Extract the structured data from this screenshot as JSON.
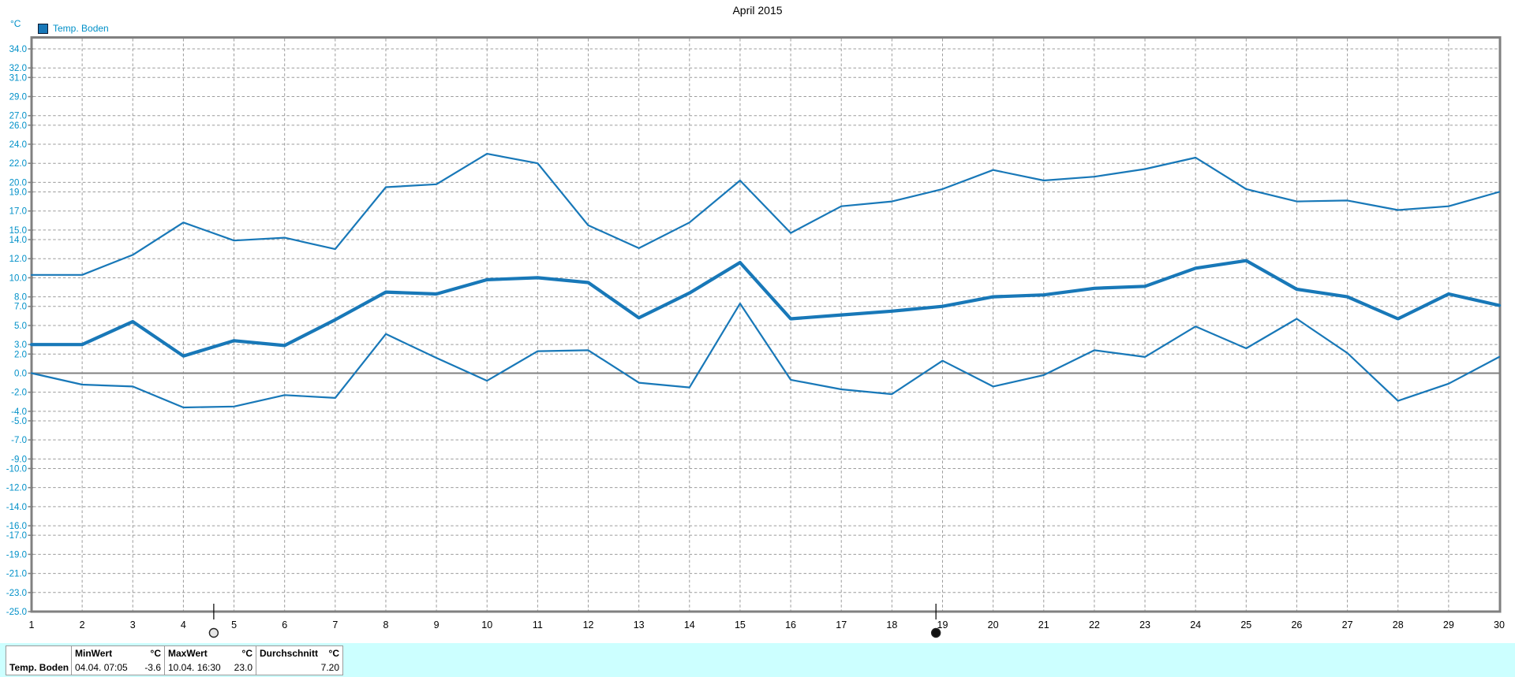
{
  "title": "April 2015",
  "y_axis_unit": "°C",
  "legend": {
    "label": "Temp. Boden",
    "swatch_color": "#1878b8"
  },
  "colors": {
    "line": "#1878b8",
    "axis": "#808080",
    "grid": "#9c9c9c",
    "axis_label": "#0090c8",
    "day_label": "#000000",
    "table_bg": "#ccffff"
  },
  "axis": {
    "y_ticks": [
      34,
      32,
      31,
      29,
      27,
      26,
      24,
      22,
      20,
      19,
      17,
      15,
      14,
      12,
      10,
      8,
      7,
      5,
      3,
      2,
      0,
      -2,
      -4,
      -5,
      -7,
      -9,
      -10,
      -12,
      -14,
      -16,
      -17,
      -19,
      -21,
      -23,
      -25
    ],
    "y_tick_decimals": 1
  },
  "moon_markers": [
    {
      "name": "full-moon",
      "day": 4.6
    },
    {
      "name": "new-moon",
      "day": 18.87
    }
  ],
  "chart_data": {
    "type": "line",
    "title": "April 2015",
    "ylabel": "°C",
    "ylim": [
      -25,
      34
    ],
    "grid": true,
    "legend_position": "top-left",
    "x": [
      1,
      2,
      3,
      4,
      5,
      6,
      7,
      8,
      9,
      10,
      11,
      12,
      13,
      14,
      15,
      16,
      17,
      18,
      19,
      20,
      21,
      22,
      23,
      24,
      25,
      26,
      27,
      28,
      29,
      30
    ],
    "series": [
      {
        "key": "max",
        "role": "daily-maximum",
        "values": [
          10.3,
          10.3,
          12.4,
          15.8,
          13.9,
          14.2,
          13.0,
          19.5,
          19.8,
          23.0,
          22.0,
          15.5,
          13.1,
          15.8,
          20.2,
          14.7,
          17.5,
          18.0,
          19.3,
          21.3,
          20.2,
          20.6,
          21.4,
          22.6,
          19.3,
          18.0,
          18.1,
          17.1,
          17.5,
          19.0
        ]
      },
      {
        "key": "avg",
        "role": "daily-average",
        "values": [
          3.0,
          3.0,
          5.4,
          1.8,
          3.4,
          2.9,
          5.6,
          8.5,
          8.3,
          9.8,
          10.0,
          9.5,
          5.8,
          8.4,
          11.6,
          5.7,
          6.1,
          6.5,
          7.0,
          8.0,
          8.2,
          8.9,
          9.1,
          11.0,
          11.8,
          8.8,
          8.0,
          5.7,
          8.3,
          7.1
        ]
      },
      {
        "key": "min",
        "role": "daily-minimum",
        "values": [
          0.0,
          -1.2,
          -1.4,
          -3.6,
          -3.5,
          -2.3,
          -2.6,
          4.1,
          1.6,
          -0.8,
          2.3,
          2.4,
          -1.0,
          -1.5,
          7.3,
          -0.7,
          -1.7,
          -2.2,
          1.3,
          -1.4,
          -0.2,
          2.4,
          1.7,
          4.9,
          2.6,
          5.7,
          2.1,
          -2.9,
          -1.1,
          1.7
        ]
      }
    ]
  },
  "summary_table": {
    "row_label": "Temp. Boden",
    "min": {
      "header": "MinWert",
      "unit": "°C",
      "datetime": "04.04. 07:05",
      "value": "-3.6"
    },
    "max": {
      "header": "MaxWert",
      "unit": "°C",
      "datetime": "10.04. 16:30",
      "value": "23.0"
    },
    "avg": {
      "header": "Durchschnitt",
      "unit": "°C",
      "value": "7.20"
    }
  }
}
